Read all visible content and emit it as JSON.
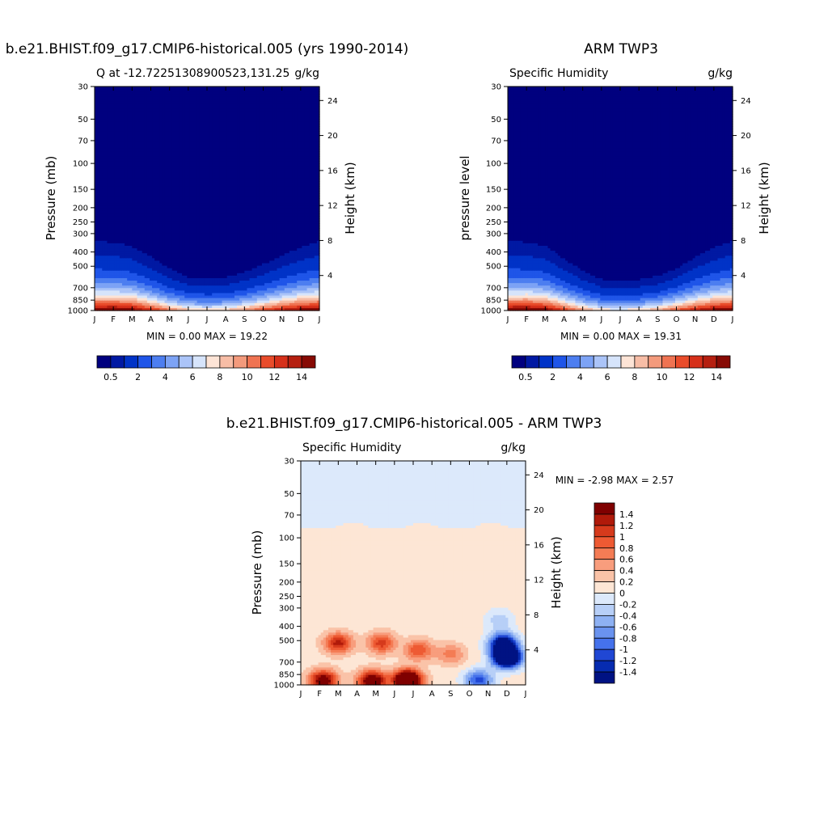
{
  "chart_data": [
    {
      "type": "heatmap",
      "title": "b.e21.BHIST.f09_g17.CMIP6-historical.005 (yrs 1990-2014)",
      "subtitle_left": "Q at -12.72251308900523,131.25",
      "units": "g/kg",
      "ylabel": "Pressure (mb)",
      "ylabel_right": "Height (km)",
      "x_tick_labels": [
        "J",
        "F",
        "M",
        "A",
        "M",
        "J",
        "J",
        "A",
        "S",
        "O",
        "N",
        "D",
        "J"
      ],
      "y_ticks": [
        "30",
        "50",
        "70",
        "100",
        "150",
        "200",
        "250",
        "300",
        "400",
        "500",
        "700",
        "850",
        "1000"
      ],
      "y_ticks_right": [
        "24",
        "20",
        "16",
        "12",
        "8",
        "4"
      ],
      "stats": "MIN =   0.00 MAX =  19.22",
      "colorbar_levels": [
        "0.5",
        "2",
        "4",
        "6",
        "8",
        "10",
        "12",
        "14"
      ],
      "colors": [
        "#00007f",
        "#0019a3",
        "#0033c7",
        "#1f55e8",
        "#4d7ef0",
        "#7da3f5",
        "#abc4f8",
        "#d6e4fb",
        "#fde4d6",
        "#f7bda6",
        "#f39a7c",
        "#ef7352",
        "#e94c2b",
        "#d6301a",
        "#b51f10",
        "#870a04"
      ],
      "ylim": [
        1000,
        30
      ],
      "profile_low_level_max": [
        15.5,
        15.8,
        15.4,
        13.0,
        10.5,
        8.8,
        8.2,
        8.6,
        10.0,
        12.0,
        13.8,
        15.0,
        15.5
      ],
      "profile_scale_height_factor": [
        1.0,
        0.98,
        0.93,
        0.82,
        0.68,
        0.58,
        0.56,
        0.58,
        0.64,
        0.72,
        0.82,
        0.92,
        1.0
      ]
    },
    {
      "type": "heatmap",
      "title": "ARM TWP3",
      "subtitle_left": "Specific Humidity",
      "units": "g/kg",
      "ylabel": "pressure level",
      "ylabel_right": "Height (km)",
      "x_tick_labels": [
        "J",
        "F",
        "M",
        "A",
        "M",
        "J",
        "J",
        "A",
        "S",
        "O",
        "N",
        "D",
        "J"
      ],
      "y_ticks": [
        "30",
        "50",
        "70",
        "100",
        "150",
        "200",
        "250",
        "300",
        "400",
        "500",
        "700",
        "850",
        "1000"
      ],
      "y_ticks_right": [
        "24",
        "20",
        "16",
        "12",
        "8",
        "4"
      ],
      "stats": "MIN =   0.00 MAX =  19.31",
      "colorbar_levels": [
        "0.5",
        "2",
        "4",
        "6",
        "8",
        "10",
        "12",
        "14"
      ],
      "colors": [
        "#00007f",
        "#0019a3",
        "#0033c7",
        "#1f55e8",
        "#4d7ef0",
        "#7da3f5",
        "#abc4f8",
        "#d6e4fb",
        "#fde4d6",
        "#f7bda6",
        "#f39a7c",
        "#ef7352",
        "#e94c2b",
        "#d6301a",
        "#b51f10",
        "#870a04"
      ],
      "ylim": [
        1000,
        30
      ],
      "profile_low_level_max": [
        15.6,
        15.9,
        15.2,
        12.5,
        9.8,
        8.0,
        7.6,
        8.2,
        9.5,
        11.8,
        13.6,
        15.0,
        15.6
      ],
      "profile_scale_height_factor": [
        1.0,
        0.98,
        0.94,
        0.8,
        0.66,
        0.56,
        0.54,
        0.55,
        0.58,
        0.66,
        0.8,
        0.92,
        1.0
      ]
    },
    {
      "type": "heatmap",
      "title": "b.e21.BHIST.f09_g17.CMIP6-historical.005 - ARM TWP3",
      "subtitle_left": "Specific Humidity",
      "units": "g/kg",
      "ylabel": "Pressure (mb)",
      "ylabel_right": "Height (km)",
      "x_tick_labels": [
        "J",
        "F",
        "M",
        "A",
        "M",
        "J",
        "J",
        "A",
        "S",
        "O",
        "N",
        "D",
        "J"
      ],
      "y_ticks": [
        "30",
        "50",
        "70",
        "100",
        "150",
        "200",
        "250",
        "300",
        "400",
        "500",
        "700",
        "850",
        "1000"
      ],
      "y_ticks_right": [
        "24",
        "20",
        "16",
        "12",
        "8",
        "4"
      ],
      "stats": "MIN =  -2.98 MAX =   2.57",
      "colorbar_levels": [
        "1.4",
        "1.2",
        "1",
        "0.8",
        "0.6",
        "0.4",
        "0.2",
        "0",
        "-0.2",
        "-0.4",
        "-0.6",
        "-0.8",
        "-1",
        "-1.2",
        "-1.4"
      ],
      "colors": [
        "#7f0000",
        "#b01a0a",
        "#d63a1c",
        "#ee5a33",
        "#f47c55",
        "#f89d7d",
        "#fac3a8",
        "#fde6d5",
        "#dce9fb",
        "#b7cff7",
        "#8eb1f3",
        "#6a93ef",
        "#4572ec",
        "#2047d4",
        "#062bb0",
        "#001283"
      ],
      "ylim": [
        1000,
        30
      ],
      "upper_region_value": -0.1,
      "mid_region_value": 0.1,
      "blob_months": [
        1.2,
        3.8,
        5.7,
        2.0,
        9.5,
        10.8,
        11.0,
        4.3,
        6.3,
        10.6,
        8.0
      ],
      "blob_pressures": [
        930,
        940,
        930,
        520,
        930,
        520,
        650,
        520,
        580,
        360,
        620
      ],
      "blob_values": [
        1.6,
        1.8,
        2.57,
        1.2,
        -1.2,
        -1.8,
        -2.98,
        1.0,
        0.9,
        -0.4,
        0.6
      ]
    }
  ]
}
